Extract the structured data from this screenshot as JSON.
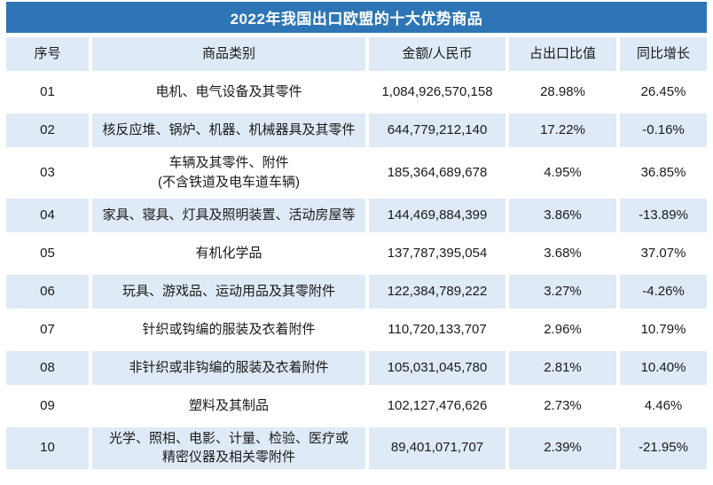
{
  "title": "2022年我国出口欧盟的十大优势商品",
  "colors": {
    "accent": "#2E75B6",
    "row_shade": "#DEEAF6",
    "text": "#1A1A1A",
    "title_text": "#FFFFFF"
  },
  "chart_data": {
    "type": "table",
    "title": "2022年我国出口欧盟的十大优势商品",
    "columns": [
      "序号",
      "商品类别",
      "金额/人民币",
      "占出口比值",
      "同比增长"
    ],
    "rows": [
      [
        "01",
        "电机、电气设备及其零件",
        "1,084,926,570,158",
        "28.98%",
        "26.45%"
      ],
      [
        "02",
        "核反应堆、锅炉、机器、机械器具及其零件",
        "644,779,212,140",
        "17.22%",
        "-0.16%"
      ],
      [
        "03",
        "车辆及其零件、附件\n(不含铁道及电车道车辆)",
        "185,364,689,678",
        "4.95%",
        "36.85%"
      ],
      [
        "04",
        "家具、寝具、灯具及照明装置、活动房屋等",
        "144,469,884,399",
        "3.86%",
        "-13.89%"
      ],
      [
        "05",
        "有机化学品",
        "137,787,395,054",
        "3.68%",
        "37.07%"
      ],
      [
        "06",
        "玩具、游戏品、运动用品及其零附件",
        "122,384,789,222",
        "3.27%",
        "-4.26%"
      ],
      [
        "07",
        "针织或钩编的服装及衣着附件",
        "110,720,133,707",
        "2.96%",
        "10.79%"
      ],
      [
        "08",
        "非针织或非钩编的服装及衣着附件",
        "105,031,045,780",
        "2.81%",
        "10.40%"
      ],
      [
        "09",
        "塑料及其制品",
        "102,127,476,626",
        "2.73%",
        "4.46%"
      ],
      [
        "10",
        "光学、照相、电影、计量、检验、医疗或\n精密仪器及相关零附件",
        "89,401,071,707",
        "2.39%",
        "-21.95%"
      ]
    ]
  }
}
